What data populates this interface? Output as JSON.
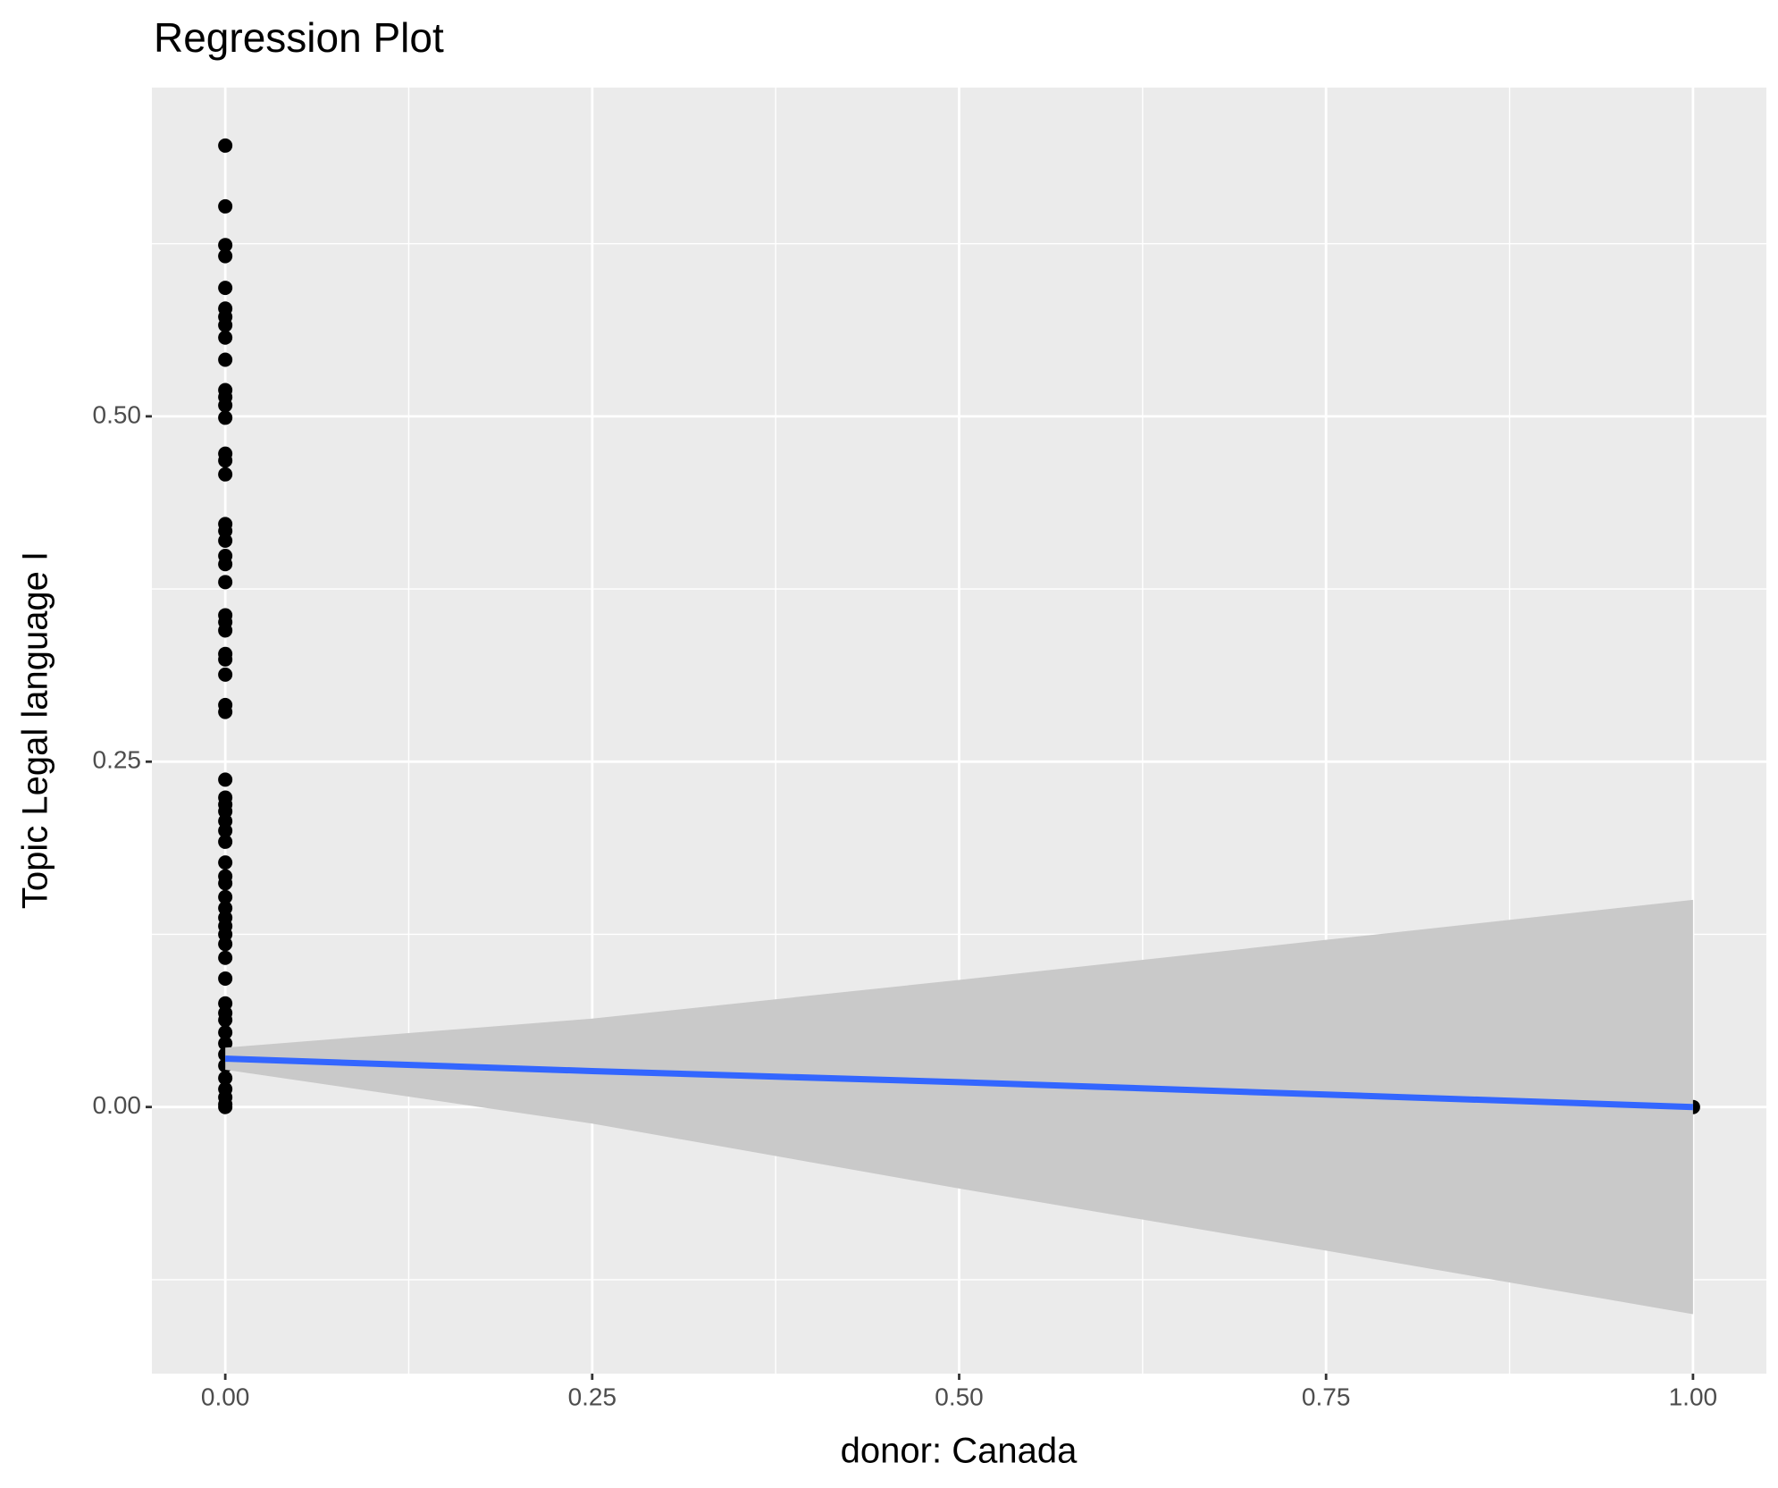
{
  "chart_data": {
    "type": "scatter",
    "title": "Regression Plot",
    "x_label": "donor: Canada",
    "y_label": "Topic Legal language I",
    "x": [
      0,
      0,
      0,
      0,
      0,
      0,
      0,
      0,
      0,
      0,
      0,
      0,
      0,
      0,
      0,
      0,
      0,
      0,
      0,
      0,
      0,
      0,
      0,
      0,
      0,
      0,
      0,
      0,
      0,
      0,
      0,
      0,
      0,
      0,
      0,
      0,
      0,
      0,
      0,
      0,
      0,
      0,
      0,
      0,
      0,
      0,
      0,
      0,
      0,
      0,
      0,
      0,
      0,
      0,
      0,
      0,
      0,
      0,
      0,
      0,
      0,
      1
    ],
    "values": [
      0.696,
      0.652,
      0.624,
      0.616,
      0.593,
      0.578,
      0.572,
      0.566,
      0.557,
      0.541,
      0.519,
      0.514,
      0.508,
      0.499,
      0.473,
      0.468,
      0.458,
      0.422,
      0.417,
      0.41,
      0.399,
      0.393,
      0.38,
      0.356,
      0.351,
      0.345,
      0.328,
      0.324,
      0.313,
      0.291,
      0.286,
      0.237,
      0.224,
      0.219,
      0.214,
      0.207,
      0.2,
      0.192,
      0.177,
      0.167,
      0.162,
      0.152,
      0.144,
      0.137,
      0.131,
      0.125,
      0.118,
      0.108,
      0.093,
      0.075,
      0.068,
      0.063,
      0.054,
      0.046,
      0.038,
      0.03,
      0.021,
      0.013,
      0.007,
      0.002,
      0,
      0
    ],
    "color": "#000000",
    "regression": {
      "x": [
        0,
        0.25,
        0.5,
        0.75,
        1
      ],
      "values": [
        0.035,
        0.026,
        0.018,
        0.009,
        0
      ],
      "ci_upper": [
        0.043,
        0.064,
        0.092,
        0.121,
        0.15
      ],
      "ci_lower": [
        0.027,
        -0.012,
        -0.059,
        -0.104,
        -0.15
      ],
      "color": "#3366FF",
      "band_color": "#C9C9C9"
    },
    "xlim": [
      -0.05,
      1.05
    ],
    "ylim": [
      -0.193,
      0.738
    ],
    "xticks": [
      {
        "value": 0,
        "label": "0.00"
      },
      {
        "value": 0.25,
        "label": "0.25"
      },
      {
        "value": 0.5,
        "label": "0.50"
      },
      {
        "value": 0.75,
        "label": "0.75"
      },
      {
        "value": 1,
        "label": "1.00"
      }
    ],
    "yticks": [
      {
        "value": 0,
        "label": "0.00"
      },
      {
        "value": 0.25,
        "label": "0.25"
      },
      {
        "value": 0.5,
        "label": "0.50"
      }
    ],
    "x_minor_grid": [
      0.125,
      0.375,
      0.625,
      0.875
    ],
    "y_minor_grid": [
      -0.125,
      0.125,
      0.375,
      0.625
    ],
    "grid": true
  }
}
